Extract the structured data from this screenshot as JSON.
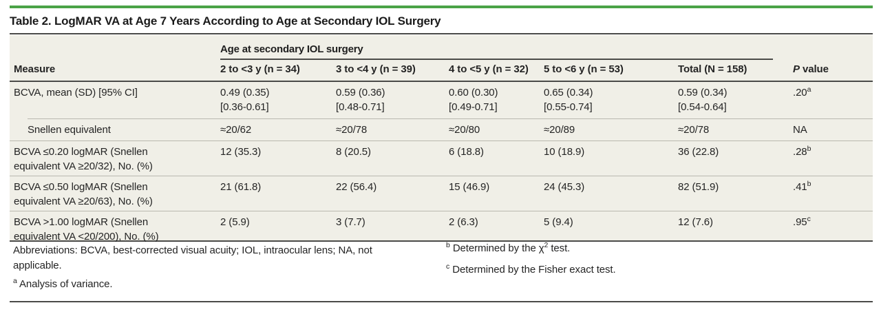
{
  "colors": {
    "accent_green": "#4aa347",
    "band_bg": "#f0efe7",
    "rule_dark": "#4a4a48",
    "rule_light": "#b9b8af"
  },
  "title": "Table 2. LogMAR VA at Age 7 Years According to Age at Secondary IOL Surgery",
  "table": {
    "spanner_label": "Age at secondary IOL surgery",
    "headers": {
      "measure": "Measure",
      "col1": "2 to <3 y (n = 34)",
      "col2": "3 to <4 y (n = 39)",
      "col3": "4 to <5 y (n = 32)",
      "col4": "5 to <6 y (n = 53)",
      "total": "Total (N = 158)",
      "p_italic": "P",
      "p_rest": " value"
    },
    "rows": [
      {
        "label": "BCVA, mean (SD) [95% CI]",
        "cells": [
          {
            "line1": "0.49 (0.35)",
            "line2": "[0.36-0.61]"
          },
          {
            "line1": "0.59 (0.36)",
            "line2": "[0.48-0.71]"
          },
          {
            "line1": "0.60 (0.30)",
            "line2": "[0.49-0.71]"
          },
          {
            "line1": "0.65 (0.34)",
            "line2": "[0.55-0.74]"
          },
          {
            "line1": "0.59 (0.34)",
            "line2": "[0.54-0.64]"
          }
        ],
        "p": {
          "value": ".20",
          "sup": "a"
        }
      },
      {
        "label": "Snellen equivalent",
        "cells": [
          {
            "line1": "≈20/62"
          },
          {
            "line1": "≈20/78"
          },
          {
            "line1": "≈20/80"
          },
          {
            "line1": "≈20/89"
          },
          {
            "line1": "≈20/78"
          }
        ],
        "p": {
          "value": "NA"
        }
      },
      {
        "label": "BCVA ≤0.20 logMAR (Snellen equivalent VA ≥20/32), No. (%)",
        "cells": [
          {
            "line1": "12 (35.3)"
          },
          {
            "line1": "8 (20.5)"
          },
          {
            "line1": "6 (18.8)"
          },
          {
            "line1": "10 (18.9)"
          },
          {
            "line1": "36 (22.8)"
          }
        ],
        "p": {
          "value": ".28",
          "sup": "b"
        }
      },
      {
        "label": "BCVA ≤0.50 logMAR (Snellen equivalent VA ≥20/63), No. (%)",
        "cells": [
          {
            "line1": "21 (61.8)"
          },
          {
            "line1": "22 (56.4)"
          },
          {
            "line1": "15 (46.9)"
          },
          {
            "line1": "24 (45.3)"
          },
          {
            "line1": "82 (51.9)"
          }
        ],
        "p": {
          "value": ".41",
          "sup": "b"
        }
      },
      {
        "label": "BCVA >1.00 logMAR (Snellen equivalent VA <20/200), No. (%)",
        "cells": [
          {
            "line1": "2 (5.9)"
          },
          {
            "line1": "3 (7.7)"
          },
          {
            "line1": "2 (6.3)"
          },
          {
            "line1": "5 (9.4)"
          },
          {
            "line1": "12 (7.6)"
          }
        ],
        "p": {
          "value": ".95",
          "sup": "c"
        }
      }
    ]
  },
  "footnotes": {
    "abbreviations": "Abbreviations: BCVA, best-corrected visual acuity; IOL, intraocular lens; NA, not applicable.",
    "a_sup": "a",
    "a_text": "Analysis of variance.",
    "b_sup": "b",
    "b_pre": "Determined by the χ",
    "b_exp": "2",
    "b_post": " test.",
    "c_sup": "c",
    "c_text": "Determined by the Fisher exact test."
  }
}
